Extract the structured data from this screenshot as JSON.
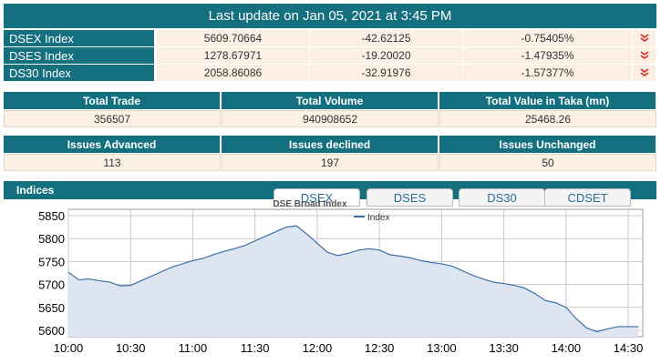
{
  "header": {
    "title": "Last update on Jan 05, 2021 at 3:45 PM"
  },
  "indices_table": {
    "rows": [
      [
        "DSEX Index",
        "5609.70664",
        "-42.62125",
        "-0.75405%"
      ],
      [
        "DSES Index",
        "1278.67971",
        "-19.20020",
        "-1.47935%"
      ],
      [
        "DS30 Index",
        "2058.86086",
        "-32.91976",
        "-1.57377%"
      ]
    ]
  },
  "trade_table": {
    "headers": [
      "Total Trade",
      "Total Volume",
      "Total Value in Taka (mn)"
    ],
    "values": [
      "356507",
      "940908652",
      "25468.26"
    ]
  },
  "issues_table": {
    "headers": [
      "Issues Advanced",
      "Issues declined",
      "Issues Unchanged"
    ],
    "values": [
      "113",
      "197",
      "50"
    ]
  },
  "panel": {
    "title": "Indices",
    "tabs": [
      "DSEX",
      "DSES",
      "DS30",
      "CDSET"
    ]
  },
  "chart_data": {
    "type": "line",
    "title": "DSE Broad Index",
    "x": [
      600,
      605,
      610,
      615,
      620,
      625,
      630,
      635,
      640,
      645,
      650,
      655,
      660,
      665,
      670,
      675,
      680,
      685,
      690,
      695,
      700,
      705,
      710,
      715,
      720,
      725,
      730,
      735,
      740,
      745,
      750,
      755,
      760,
      765,
      770,
      775,
      780,
      785,
      790,
      795,
      800,
      805,
      810,
      815,
      820,
      825,
      830,
      835,
      840,
      845,
      850,
      855,
      860,
      865,
      870,
      875
    ],
    "series": [
      {
        "name": "Index",
        "color": "#3d6fa6",
        "values": [
          5727,
          5710,
          5712,
          5708,
          5705,
          5697,
          5698,
          5708,
          5718,
          5728,
          5738,
          5745,
          5752,
          5757,
          5765,
          5772,
          5778,
          5785,
          5795,
          5805,
          5815,
          5825,
          5828,
          5810,
          5790,
          5770,
          5763,
          5768,
          5775,
          5778,
          5775,
          5765,
          5762,
          5758,
          5752,
          5748,
          5745,
          5740,
          5730,
          5720,
          5712,
          5705,
          5702,
          5698,
          5692,
          5680,
          5665,
          5660,
          5650,
          5625,
          5605,
          5597,
          5603,
          5608,
          5608,
          5608
        ]
      }
    ],
    "xlim": [
      600,
      877
    ],
    "xticks": [
      {
        "value": 600,
        "label": "10:00"
      },
      {
        "value": 630,
        "label": "10:30"
      },
      {
        "value": 660,
        "label": "11:00"
      },
      {
        "value": 690,
        "label": "11:30"
      },
      {
        "value": 720,
        "label": "12:00"
      },
      {
        "value": 750,
        "label": "12:30"
      },
      {
        "value": 780,
        "label": "13:00"
      },
      {
        "value": 810,
        "label": "13:30"
      },
      {
        "value": 840,
        "label": "14:00"
      },
      {
        "value": 870,
        "label": "14:30"
      }
    ],
    "ylim": [
      5586,
      5864
    ],
    "yticks": [
      5600,
      5650,
      5700,
      5750,
      5800,
      5850
    ],
    "grid": true
  }
}
